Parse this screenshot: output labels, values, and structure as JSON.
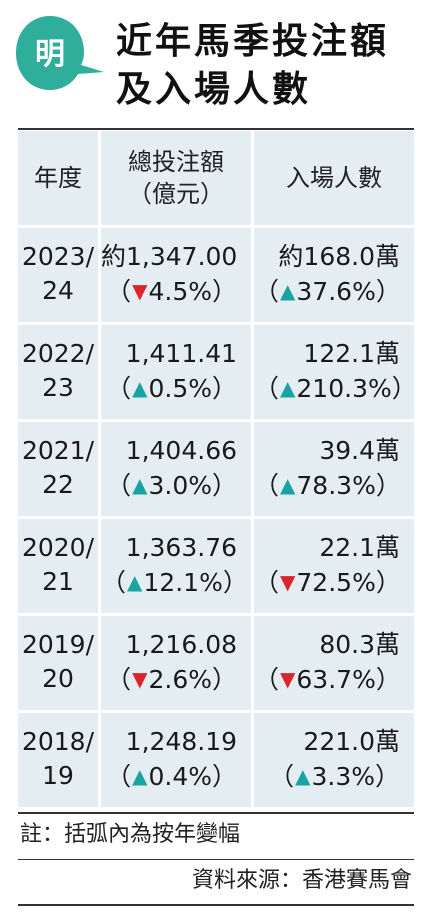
{
  "logo": {
    "char": "明",
    "color": "#2fae9c"
  },
  "title": {
    "line1": "近年馬季投注額",
    "line2": "及入場人數"
  },
  "table": {
    "headers": {
      "year": "年度",
      "bet_line1": "總投注額",
      "bet_line2": "（億元）",
      "attend": "入場人數"
    },
    "rows": [
      {
        "year1": "2023/",
        "year2": "24",
        "bet": "約1,347.00",
        "bet_pct": "4.5%",
        "bet_dir": "down",
        "att": "約168.0萬",
        "att_pct": "37.6%",
        "att_dir": "up"
      },
      {
        "year1": "2022/",
        "year2": "23",
        "bet": "1,411.41",
        "bet_pct": "0.5%",
        "bet_dir": "up",
        "att": "122.1萬",
        "att_pct": "210.3%",
        "att_dir": "up"
      },
      {
        "year1": "2021/",
        "year2": "22",
        "bet": "1,404.66",
        "bet_pct": "3.0%",
        "bet_dir": "up",
        "att": "39.4萬",
        "att_pct": "78.3%",
        "att_dir": "up"
      },
      {
        "year1": "2020/",
        "year2": "21",
        "bet": "1,363.76",
        "bet_pct": "12.1%",
        "bet_dir": "up",
        "att": "22.1萬",
        "att_pct": "72.5%",
        "att_dir": "down"
      },
      {
        "year1": "2019/",
        "year2": "20",
        "bet": "1,216.08",
        "bet_pct": "2.6%",
        "bet_dir": "down",
        "att": "80.3萬",
        "att_pct": "63.7%",
        "att_dir": "down"
      },
      {
        "year1": "2018/",
        "year2": "19",
        "bet": "1,248.19",
        "bet_pct": "0.4%",
        "bet_dir": "up",
        "att": "221.0萬",
        "att_pct": "3.3%",
        "att_dir": "up"
      }
    ]
  },
  "note": "註：括弧內為按年變幅",
  "source": "資料來源：香港賽馬會",
  "colors": {
    "up": "#1aa3a3",
    "down": "#d9252b",
    "cell_bg": "#e4eef2"
  }
}
